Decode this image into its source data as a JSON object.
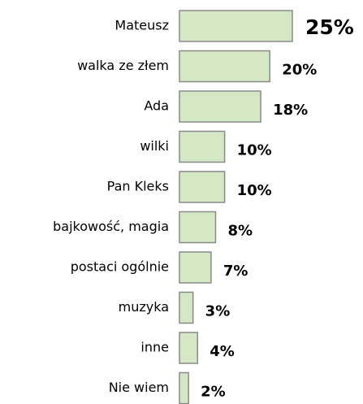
{
  "chart_data": {
    "type": "barh",
    "categories": [
      "Mateusz",
      "walka ze złem",
      "Ada",
      "wilki",
      "Pan Kleks",
      "bajkowość, magia",
      "postaci ogólnie",
      "muzyka",
      "inne",
      "Nie wiem"
    ],
    "values": [
      25,
      20,
      18,
      10,
      10,
      8,
      7,
      3,
      4,
      2
    ],
    "value_labels": [
      "25%",
      "20%",
      "18%",
      "10%",
      "10%",
      "8%",
      "7%",
      "3%",
      "4%",
      "2%"
    ],
    "color": "#d5e8c6"
  }
}
